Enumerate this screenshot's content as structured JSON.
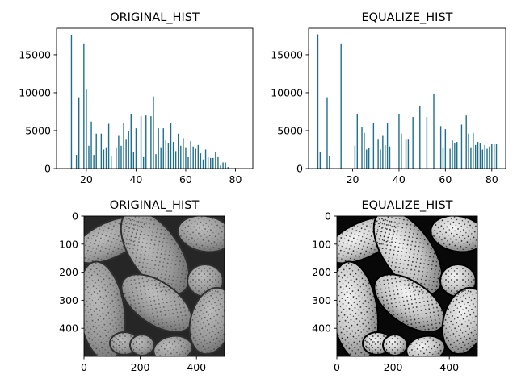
{
  "bar_color": "#1f6f8b",
  "chart_data": [
    {
      "type": "bar",
      "title": "ORIGINAL_HIST",
      "xlim": [
        8,
        87
      ],
      "ylim": [
        0,
        18500
      ],
      "xticks": [
        20,
        40,
        60,
        80
      ],
      "yticks": [
        0,
        5000,
        10000,
        15000
      ],
      "bars": [
        {
          "x": 14,
          "y": 17600
        },
        {
          "x": 16,
          "y": 1800
        },
        {
          "x": 17,
          "y": 9400
        },
        {
          "x": 19,
          "y": 16500
        },
        {
          "x": 20,
          "y": 10400
        },
        {
          "x": 21,
          "y": 3000
        },
        {
          "x": 22,
          "y": 6200
        },
        {
          "x": 23,
          "y": 1800
        },
        {
          "x": 24,
          "y": 4600
        },
        {
          "x": 26,
          "y": 4600
        },
        {
          "x": 27,
          "y": 2500
        },
        {
          "x": 28,
          "y": 2800
        },
        {
          "x": 29,
          "y": 5900
        },
        {
          "x": 30,
          "y": 1700
        },
        {
          "x": 32,
          "y": 2800
        },
        {
          "x": 33,
          "y": 4300
        },
        {
          "x": 34,
          "y": 3000
        },
        {
          "x": 35,
          "y": 6000
        },
        {
          "x": 36,
          "y": 3800
        },
        {
          "x": 37,
          "y": 5000
        },
        {
          "x": 38,
          "y": 7200
        },
        {
          "x": 39,
          "y": 2200
        },
        {
          "x": 40,
          "y": 5300
        },
        {
          "x": 42,
          "y": 6900
        },
        {
          "x": 43,
          "y": 1500
        },
        {
          "x": 44,
          "y": 7000
        },
        {
          "x": 46,
          "y": 6900
        },
        {
          "x": 47,
          "y": 9500
        },
        {
          "x": 48,
          "y": 1900
        },
        {
          "x": 49,
          "y": 5300
        },
        {
          "x": 50,
          "y": 2800
        },
        {
          "x": 51,
          "y": 5300
        },
        {
          "x": 52,
          "y": 3700
        },
        {
          "x": 53,
          "y": 3400
        },
        {
          "x": 54,
          "y": 6000
        },
        {
          "x": 55,
          "y": 3500
        },
        {
          "x": 56,
          "y": 2300
        },
        {
          "x": 57,
          "y": 4600
        },
        {
          "x": 58,
          "y": 3000
        },
        {
          "x": 59,
          "y": 4000
        },
        {
          "x": 60,
          "y": 2800
        },
        {
          "x": 61,
          "y": 1500
        },
        {
          "x": 62,
          "y": 3600
        },
        {
          "x": 63,
          "y": 2900
        },
        {
          "x": 64,
          "y": 2600
        },
        {
          "x": 65,
          "y": 3100
        },
        {
          "x": 66,
          "y": 2000
        },
        {
          "x": 67,
          "y": 1200
        },
        {
          "x": 68,
          "y": 2500
        },
        {
          "x": 69,
          "y": 1500
        },
        {
          "x": 70,
          "y": 1400
        },
        {
          "x": 71,
          "y": 1400
        },
        {
          "x": 72,
          "y": 2200
        },
        {
          "x": 73,
          "y": 1500
        },
        {
          "x": 74,
          "y": 400
        },
        {
          "x": 75,
          "y": 800
        },
        {
          "x": 76,
          "y": 800
        },
        {
          "x": 77,
          "y": 200
        },
        {
          "x": 80,
          "y": 100
        }
      ]
    },
    {
      "type": "bar",
      "title": "EQUALIZE_HIST",
      "xlim": [
        1,
        86
      ],
      "ylim": [
        0,
        18500
      ],
      "xticks": [
        20,
        40,
        60,
        80
      ],
      "yticks": [
        0,
        5000,
        10000,
        15000
      ],
      "bars": [
        {
          "x": 5,
          "y": 17700
        },
        {
          "x": 6,
          "y": 2200
        },
        {
          "x": 9,
          "y": 9400
        },
        {
          "x": 10,
          "y": 1700
        },
        {
          "x": 15,
          "y": 16500
        },
        {
          "x": 21,
          "y": 3000
        },
        {
          "x": 22,
          "y": 7200
        },
        {
          "x": 24,
          "y": 5500
        },
        {
          "x": 25,
          "y": 4700
        },
        {
          "x": 26,
          "y": 2500
        },
        {
          "x": 27,
          "y": 2700
        },
        {
          "x": 29,
          "y": 6000
        },
        {
          "x": 31,
          "y": 3800
        },
        {
          "x": 32,
          "y": 2500
        },
        {
          "x": 33,
          "y": 4300
        },
        {
          "x": 34,
          "y": 3100
        },
        {
          "x": 35,
          "y": 6000
        },
        {
          "x": 36,
          "y": 2900
        },
        {
          "x": 40,
          "y": 7200
        },
        {
          "x": 41,
          "y": 4600
        },
        {
          "x": 43,
          "y": 3800
        },
        {
          "x": 44,
          "y": 3800
        },
        {
          "x": 46,
          "y": 6800
        },
        {
          "x": 49,
          "y": 8300
        },
        {
          "x": 52,
          "y": 6800
        },
        {
          "x": 55,
          "y": 9900
        },
        {
          "x": 58,
          "y": 5600
        },
        {
          "x": 59,
          "y": 2800
        },
        {
          "x": 60,
          "y": 5200
        },
        {
          "x": 62,
          "y": 2600
        },
        {
          "x": 63,
          "y": 3700
        },
        {
          "x": 64,
          "y": 3400
        },
        {
          "x": 65,
          "y": 3500
        },
        {
          "x": 67,
          "y": 5800
        },
        {
          "x": 69,
          "y": 7000
        },
        {
          "x": 70,
          "y": 4600
        },
        {
          "x": 71,
          "y": 2800
        },
        {
          "x": 72,
          "y": 4700
        },
        {
          "x": 73,
          "y": 3100
        },
        {
          "x": 74,
          "y": 3500
        },
        {
          "x": 75,
          "y": 3400
        },
        {
          "x": 76,
          "y": 2500
        },
        {
          "x": 77,
          "y": 3100
        },
        {
          "x": 78,
          "y": 2600
        },
        {
          "x": 79,
          "y": 2900
        },
        {
          "x": 80,
          "y": 3200
        },
        {
          "x": 81,
          "y": 3300
        },
        {
          "x": 82,
          "y": 3300
        }
      ]
    },
    {
      "type": "image",
      "title": "ORIGINAL_HIST",
      "xticks": [
        0,
        200,
        400
      ],
      "yticks": [
        0,
        100,
        200,
        300,
        400
      ],
      "contrast": "low"
    },
    {
      "type": "image",
      "title": "EQUALIZE_HIST",
      "xticks": [
        0,
        200,
        400
      ],
      "yticks": [
        0,
        100,
        200,
        300,
        400
      ],
      "contrast": "high"
    }
  ]
}
